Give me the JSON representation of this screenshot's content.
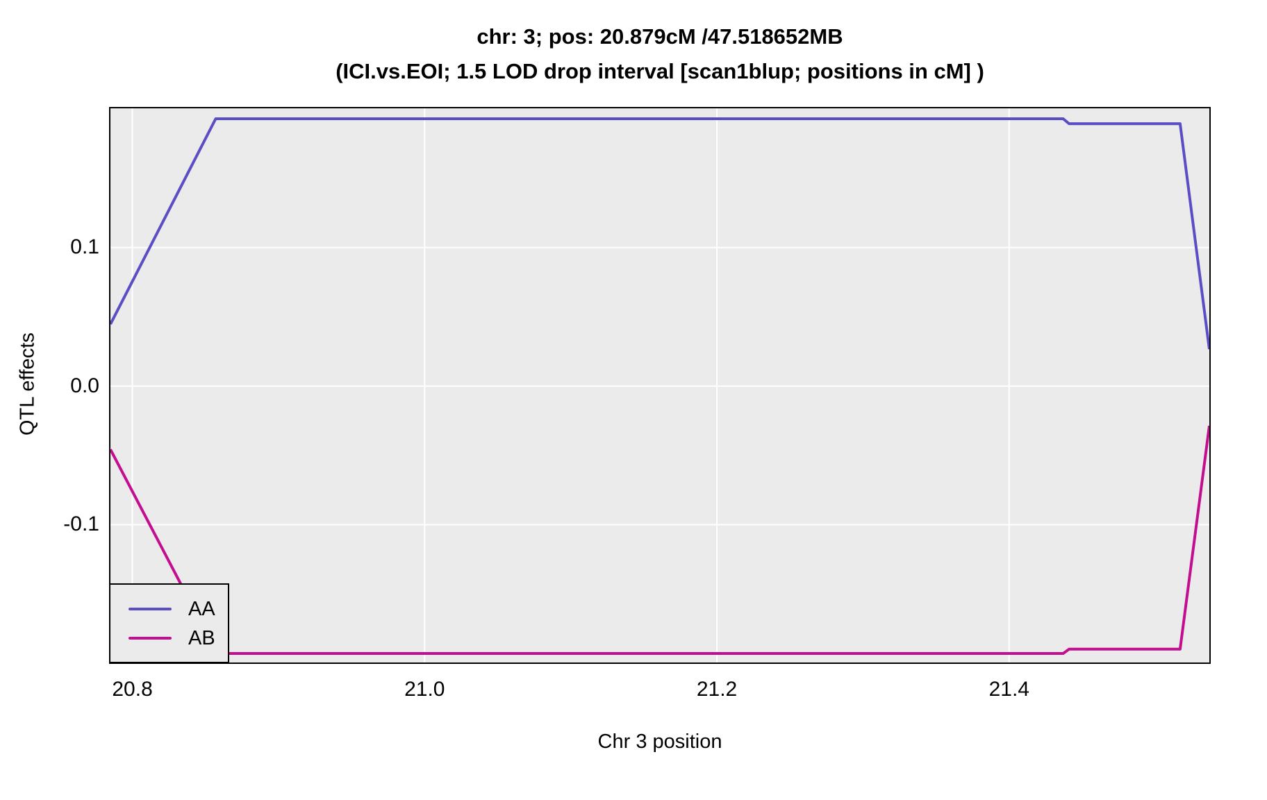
{
  "chart_data": {
    "type": "line",
    "title": "chr: 3; pos: 20.879cM /47.518652MB",
    "subtitle": "(ICI.vs.EOI; 1.5 LOD drop interval [scan1blup; positions in cM] )",
    "xlabel": "Chr 3 position",
    "ylabel": "QTL effects",
    "xlim": [
      20.785,
      21.537
    ],
    "ylim": [
      -0.1995,
      0.2005
    ],
    "x_ticks": [
      20.8,
      21.0,
      21.2,
      21.4
    ],
    "x_tick_labels": [
      "20.8",
      "21.0",
      "21.2",
      "21.4"
    ],
    "y_ticks": [
      0.1,
      0.0,
      -0.1
    ],
    "y_tick_labels": [
      "0.1",
      "0.0",
      "-0.1"
    ],
    "grid": "major-only",
    "panel_background": "#EBEBEB",
    "grid_color": "#FFFFFF",
    "border_color": "#000000",
    "text_color": "#000000",
    "line_width": 4,
    "legend_position": "inside-bottom-left",
    "series": [
      {
        "name": "AA",
        "color": "#5B4EC5",
        "points": [
          [
            20.785,
            0.0447
          ],
          [
            20.857,
            0.193
          ],
          [
            21.437,
            0.193
          ],
          [
            21.441,
            0.1894
          ],
          [
            21.517,
            0.1894
          ],
          [
            21.537,
            0.0266
          ]
        ]
      },
      {
        "name": "AB",
        "color": "#C30E8F",
        "points": [
          [
            20.785,
            -0.0457
          ],
          [
            20.858,
            -0.193
          ],
          [
            21.437,
            -0.193
          ],
          [
            21.441,
            -0.1899
          ],
          [
            21.517,
            -0.1899
          ],
          [
            21.537,
            -0.0286
          ]
        ]
      }
    ]
  }
}
